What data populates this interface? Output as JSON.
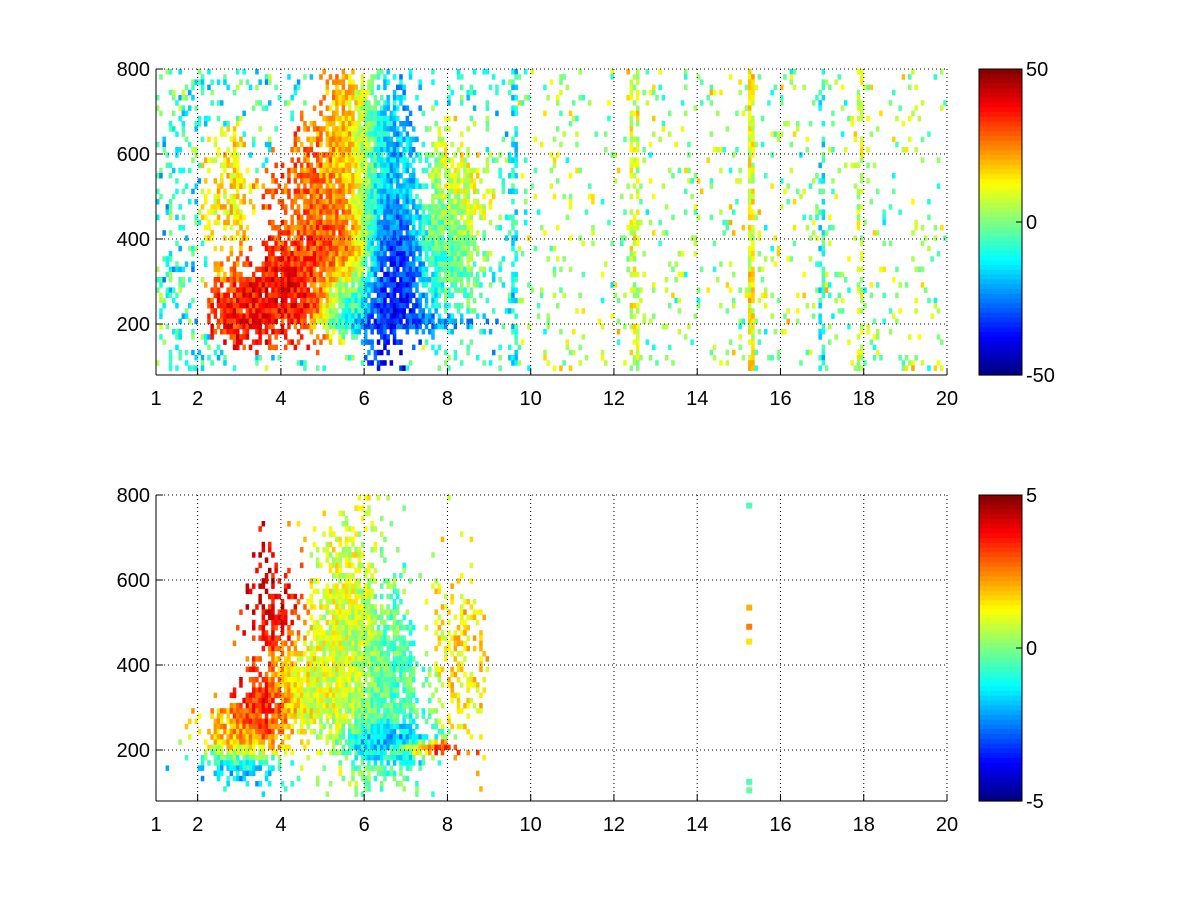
{
  "figure": {
    "background": "#ffffff",
    "colormap": "jet",
    "grid": true,
    "grid_style": "dotted"
  },
  "chart_data": [
    {
      "type": "heatmap",
      "title": "",
      "xlabel": "",
      "ylabel": "",
      "xlim": [
        1,
        20
      ],
      "ylim": [
        80,
        800
      ],
      "x_ticks": [
        1,
        2,
        4,
        6,
        8,
        10,
        12,
        14,
        16,
        18,
        20
      ],
      "x_tick_labels": [
        "1",
        "2",
        "4",
        "6",
        "8",
        "10",
        "12",
        "14",
        "16",
        "18",
        "20"
      ],
      "y_ticks": [
        200,
        400,
        600,
        800
      ],
      "y_tick_labels": [
        "200",
        "400",
        "600",
        "800"
      ],
      "colorbar": {
        "min": -50,
        "max": 50,
        "tick_values": [
          -50,
          0,
          50
        ],
        "tick_labels": [
          "-50",
          "0",
          "50"
        ]
      },
      "density_model": {
        "blobs": [
          {
            "x": 3.0,
            "y": 230,
            "sx": 0.55,
            "sy": 50,
            "v": 35,
            "w": 1.0
          },
          {
            "x": 4.2,
            "y": 280,
            "sx": 0.6,
            "sy": 60,
            "v": 40,
            "w": 1.0
          },
          {
            "x": 4.8,
            "y": 420,
            "sx": 0.7,
            "sy": 140,
            "v": 28,
            "w": 0.9
          },
          {
            "x": 5.6,
            "y": 600,
            "sx": 0.45,
            "sy": 170,
            "v": 20,
            "w": 0.9
          },
          {
            "x": 5.4,
            "y": 330,
            "sx": 0.45,
            "sy": 70,
            "v": 38,
            "w": 1.0
          },
          {
            "x": 5.5,
            "y": 270,
            "sx": 0.35,
            "sy": 50,
            "v": -40,
            "w": 0.9
          },
          {
            "x": 6.6,
            "y": 300,
            "sx": 0.45,
            "sy": 110,
            "v": -40,
            "w": 1.0
          },
          {
            "x": 6.6,
            "y": 550,
            "sx": 0.5,
            "sy": 160,
            "v": -20,
            "w": 0.95
          },
          {
            "x": 7.0,
            "y": 205,
            "sx": 1.2,
            "sy": 12,
            "v": -28,
            "w": 0.8
          },
          {
            "x": 8.2,
            "y": 480,
            "sx": 0.5,
            "sy": 120,
            "v": 12,
            "w": 0.75
          },
          {
            "x": 8.0,
            "y": 350,
            "sx": 0.5,
            "sy": 100,
            "v": -12,
            "w": 0.65
          },
          {
            "x": 2.6,
            "y": 500,
            "sx": 0.4,
            "sy": 120,
            "v": 14,
            "w": 0.6
          }
        ],
        "background_density": 0.18,
        "background_value": -8,
        "vertical_streaks": [
          {
            "x": 9.6,
            "v": -12,
            "density": 0.6
          },
          {
            "x": 12.5,
            "v": 8,
            "density": 0.55
          },
          {
            "x": 15.3,
            "v": 12,
            "density": 0.9
          },
          {
            "x": 17.0,
            "v": -10,
            "density": 0.45
          },
          {
            "x": 17.9,
            "v": 6,
            "density": 0.4
          }
        ]
      }
    },
    {
      "type": "heatmap",
      "title": "",
      "xlabel": "",
      "ylabel": "",
      "xlim": [
        1,
        20
      ],
      "ylim": [
        80,
        800
      ],
      "x_ticks": [
        1,
        2,
        4,
        6,
        8,
        10,
        12,
        14,
        16,
        18,
        20
      ],
      "x_tick_labels": [
        "1",
        "2",
        "4",
        "6",
        "8",
        "10",
        "12",
        "14",
        "16",
        "18",
        "20"
      ],
      "y_ticks": [
        200,
        400,
        600,
        800
      ],
      "y_tick_labels": [
        "200",
        "400",
        "600",
        "800"
      ],
      "colorbar": {
        "min": -5,
        "max": 5,
        "tick_values": [
          -5,
          0,
          5
        ],
        "tick_labels": [
          "-5",
          "0",
          "5"
        ]
      },
      "density_model": {
        "blobs": [
          {
            "x": 3.0,
            "y": 240,
            "sx": 0.5,
            "sy": 45,
            "v": 2.0,
            "w": 1.0
          },
          {
            "x": 3.6,
            "y": 300,
            "sx": 0.4,
            "sy": 45,
            "v": 4.5,
            "w": 0.9
          },
          {
            "x": 4.5,
            "y": 330,
            "sx": 0.6,
            "sy": 70,
            "v": 1.0,
            "w": 1.0
          },
          {
            "x": 3.9,
            "y": 520,
            "sx": 0.4,
            "sy": 80,
            "v": 4.0,
            "w": 0.55
          },
          {
            "x": 5.5,
            "y": 480,
            "sx": 0.5,
            "sy": 180,
            "v": 1.0,
            "w": 0.95
          },
          {
            "x": 6.5,
            "y": 330,
            "sx": 0.55,
            "sy": 140,
            "v": -0.5,
            "w": 0.95
          },
          {
            "x": 6.5,
            "y": 220,
            "sx": 0.6,
            "sy": 25,
            "v": -3.5,
            "w": 0.8
          },
          {
            "x": 7.5,
            "y": 205,
            "sx": 0.5,
            "sy": 10,
            "v": 4.2,
            "w": 0.8
          },
          {
            "x": 3.0,
            "y": 165,
            "sx": 0.6,
            "sy": 25,
            "v": -2.5,
            "w": 0.6
          },
          {
            "x": 8.3,
            "y": 420,
            "sx": 0.4,
            "sy": 110,
            "v": 1.5,
            "w": 0.5
          }
        ],
        "background_density": 0.0,
        "background_value": 0,
        "x_cutoff": 9.0,
        "isolated_points": [
          {
            "x": 15.25,
            "y": 775,
            "v": -0.5
          },
          {
            "x": 15.25,
            "y": 535,
            "v": 2.0
          },
          {
            "x": 15.25,
            "y": 490,
            "v": 2.5
          },
          {
            "x": 15.25,
            "y": 455,
            "v": 1.5
          },
          {
            "x": 15.25,
            "y": 105,
            "v": -0.3
          },
          {
            "x": 15.25,
            "y": 125,
            "v": -0.5
          }
        ]
      }
    }
  ]
}
